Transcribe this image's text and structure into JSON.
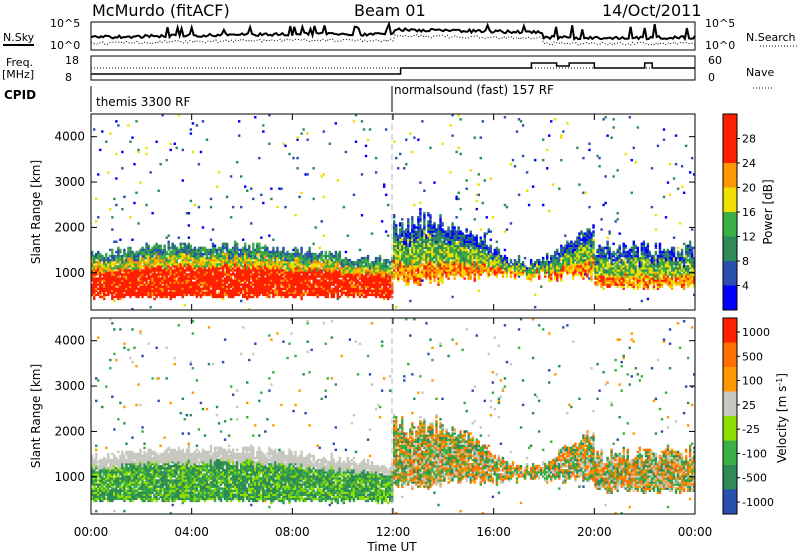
{
  "header": {
    "title": "McMurdo (fitACF)",
    "beam": "Beam 01",
    "date": "14/Oct/2011"
  },
  "top_panel": {
    "left_label": "N.Sky",
    "left_ticks": [
      "10^5",
      "10^0"
    ],
    "right_label": "N.Search",
    "right_ticks": [
      "10^5",
      "10^0"
    ]
  },
  "freq_panel": {
    "left_label_1": "Freq.",
    "left_label_2": "[MHz]",
    "left_ticks": [
      "18",
      "8"
    ],
    "right_label": "Nave",
    "right_ticks": [
      "60",
      "0"
    ]
  },
  "cpid": {
    "label": "CPID",
    "segments": [
      {
        "text": "themis 3300 RF",
        "start_hour": 0
      },
      {
        "text": "normalsound (fast) 157 RF",
        "start_hour": 12
      }
    ]
  },
  "time_axis": {
    "label": "Time UT",
    "ticks": [
      "00:00",
      "04:00",
      "08:00",
      "12:00",
      "16:00",
      "20:00",
      "00:00"
    ]
  },
  "chart_data": [
    {
      "type": "heatmap",
      "name": "power",
      "ylabel": "Slant Range [km]",
      "yticks": [
        1000,
        2000,
        3000,
        4000
      ],
      "ylim": [
        180,
        4500
      ],
      "xlim": [
        0,
        24
      ],
      "colorbar_label": "Power [dB]",
      "colorbar_ticks": [
        "4",
        "8",
        "12",
        "16",
        "20",
        "24",
        "28"
      ],
      "colors": [
        "#0000ff",
        "#2a4fb0",
        "#2e8b57",
        "#3cb044",
        "#f0e000",
        "#ff9800",
        "#ff2000",
        "#ff2000"
      ]
    },
    {
      "type": "heatmap",
      "name": "velocity",
      "ylabel": "Slant Range [km]",
      "yticks": [
        1000,
        2000,
        3000,
        4000
      ],
      "ylim": [
        180,
        4500
      ],
      "xlim": [
        0,
        24
      ],
      "colorbar_label": "Velocity [m s^-1]",
      "colorbar_ticks": [
        "1000",
        "500",
        "100",
        "25",
        "-25",
        "-100",
        "-500",
        "-1000"
      ],
      "colors": [
        "#2a4fb0",
        "#2e8b57",
        "#3cb044",
        "#8fe000",
        "#c8c8c0",
        "#ff9800",
        "#ff7000",
        "#ff2000"
      ]
    }
  ]
}
